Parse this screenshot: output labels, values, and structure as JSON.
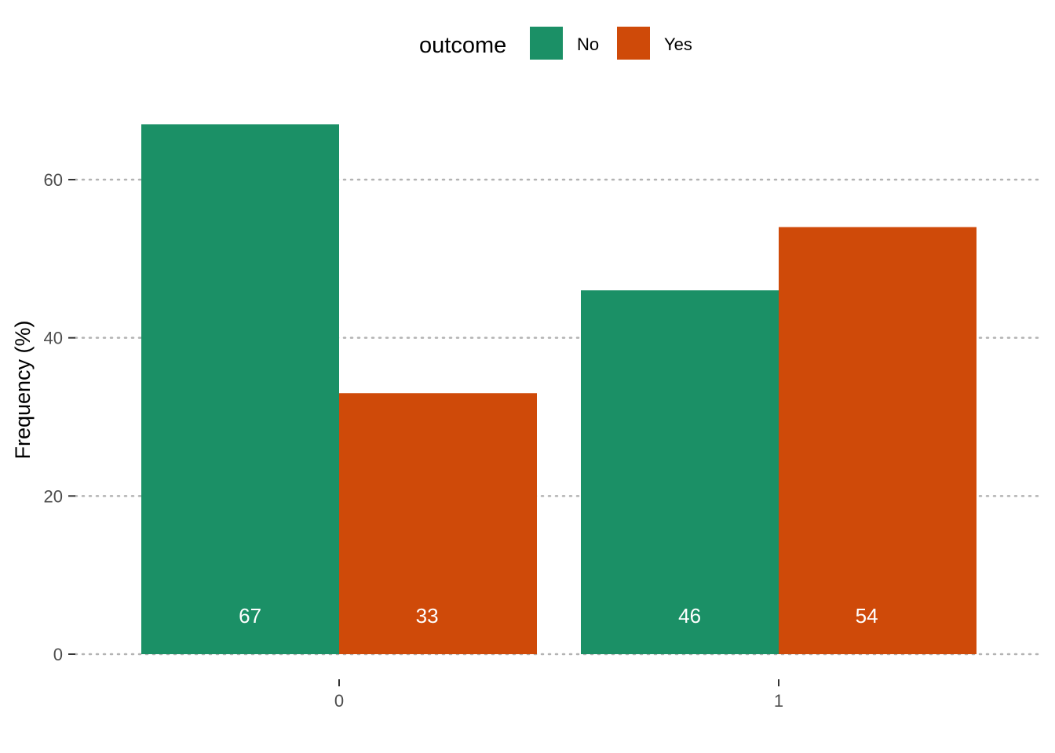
{
  "chart_data": {
    "type": "bar",
    "title": "",
    "xlabel": "",
    "ylabel": "Frequency (%)",
    "categories": [
      "0",
      "1"
    ],
    "series": [
      {
        "name": "No",
        "values": [
          67,
          46
        ],
        "labels": [
          "67",
          "46"
        ],
        "color": "#1b9066"
      },
      {
        "name": "Yes",
        "values": [
          33,
          54
        ],
        "labels": [
          "33",
          "54"
        ],
        "color": "#cf4a09"
      }
    ],
    "ylim": [
      0,
      67
    ],
    "yticks": [
      0,
      20,
      40,
      60
    ],
    "grid": "horizontal-dotted",
    "legend": {
      "title": "outcome",
      "position": "top"
    }
  }
}
